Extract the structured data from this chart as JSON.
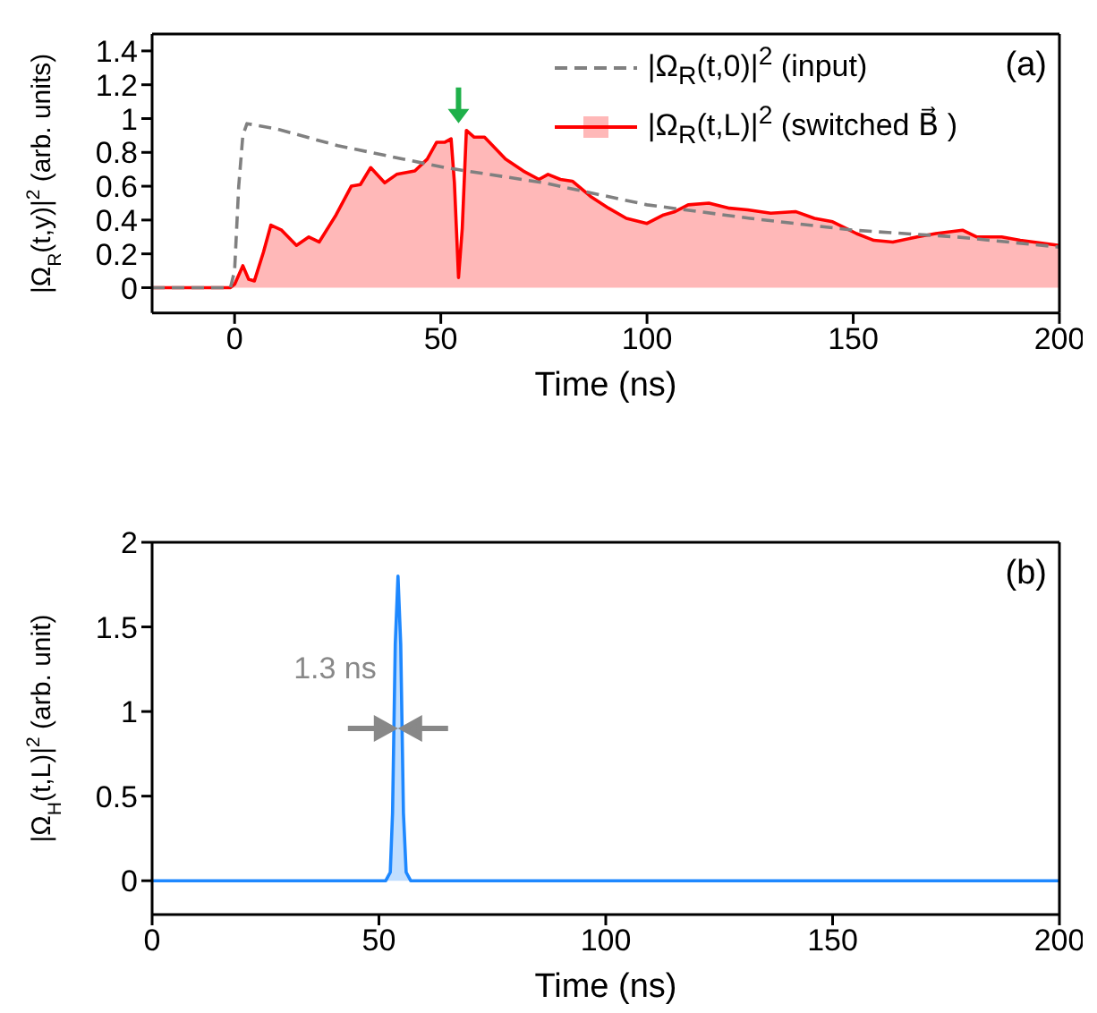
{
  "chart_data": [
    {
      "type": "line",
      "xlabel": "Time (ns)",
      "ylabel": "|Ω$_{R}$(t,y)|$^{2}$ (arb. units)",
      "xlim": [
        -20,
        200
      ],
      "xticks": [
        0,
        50,
        100,
        150,
        200
      ],
      "ylim": [
        -0.15,
        1.5
      ],
      "yticks": [
        0,
        0.2,
        0.4,
        0.6,
        0.8,
        1,
        1.2,
        1.4
      ],
      "legend": "top right",
      "annotations": [
        "(a)"
      ],
      "series": [
        {
          "name": "|Ω$_{R}$(t,0)|$^{2}$ (input)",
          "line_style": "dashed",
          "color": "#808080",
          "x": [
            -20,
            -1,
            0,
            1,
            2,
            3,
            10,
            25,
            51,
            75,
            100,
            125,
            150,
            175,
            200
          ],
          "values": [
            0,
            0,
            0.1,
            0.6,
            0.9,
            0.97,
            0.94,
            0.84,
            0.71,
            0.62,
            0.49,
            0.41,
            0.34,
            0.3,
            0.24
          ]
        },
        {
          "name": "|Ω$_{R}$(t,L)|$^{2}$ (switched B⃗ )",
          "type": "area",
          "color": "#ff0000",
          "x": [
            -20,
            -1,
            0,
            2,
            3.4,
            4.8,
            7,
            8.8,
            11.4,
            15,
            18,
            20.5,
            24.6,
            28.3,
            30.5,
            33,
            36.4,
            39.3,
            43.7,
            46.7,
            49,
            51,
            52.5,
            53.3,
            54.3,
            55.2,
            56.2,
            58.1,
            60.6,
            65.7,
            70,
            73.8,
            76,
            79,
            81.9,
            86.3,
            90.7,
            95,
            100,
            104,
            106.8,
            110,
            115,
            120,
            124.4,
            130,
            136,
            140.6,
            145,
            150.8,
            155,
            159.6,
            165.5,
            170,
            176.5,
            180,
            186,
            190.5,
            200
          ],
          "values": [
            0,
            0,
            0.02,
            0.13,
            0.05,
            0.04,
            0.21,
            0.37,
            0.34,
            0.25,
            0.3,
            0.27,
            0.43,
            0.6,
            0.61,
            0.71,
            0.62,
            0.67,
            0.69,
            0.76,
            0.86,
            0.86,
            0.88,
            0.62,
            0.06,
            0.35,
            0.93,
            0.89,
            0.89,
            0.76,
            0.69,
            0.64,
            0.67,
            0.64,
            0.63,
            0.54,
            0.47,
            0.41,
            0.38,
            0.43,
            0.45,
            0.49,
            0.5,
            0.47,
            0.46,
            0.44,
            0.45,
            0.41,
            0.39,
            0.32,
            0.28,
            0.27,
            0.3,
            0.32,
            0.34,
            0.3,
            0.3,
            0.28,
            0.25
          ]
        }
      ]
    },
    {
      "type": "area",
      "xlabel": "Time (ns)",
      "ylabel": "|Ω$_{H}$(t,L)|$^{2}$ (arb. unit)",
      "xlim": [
        0,
        200
      ],
      "xticks": [
        0,
        50,
        100,
        150,
        200
      ],
      "ylim": [
        -0.2,
        2
      ],
      "yticks": [
        0,
        0.5,
        1,
        1.5,
        2
      ],
      "annotations": [
        "(b)",
        {
          "text": "1.3 ns",
          "x": 54.2,
          "y": 0.9
        }
      ],
      "series": [
        {
          "color": "#1e88ff",
          "x": [
            0,
            51.5,
            52.5,
            53,
            53.6,
            54.2,
            54.8,
            55.4,
            56,
            57,
            200
          ],
          "values": [
            0,
            0,
            0.05,
            0.4,
            1.4,
            1.8,
            1.4,
            0.4,
            0.05,
            0,
            0
          ]
        }
      ]
    }
  ]
}
